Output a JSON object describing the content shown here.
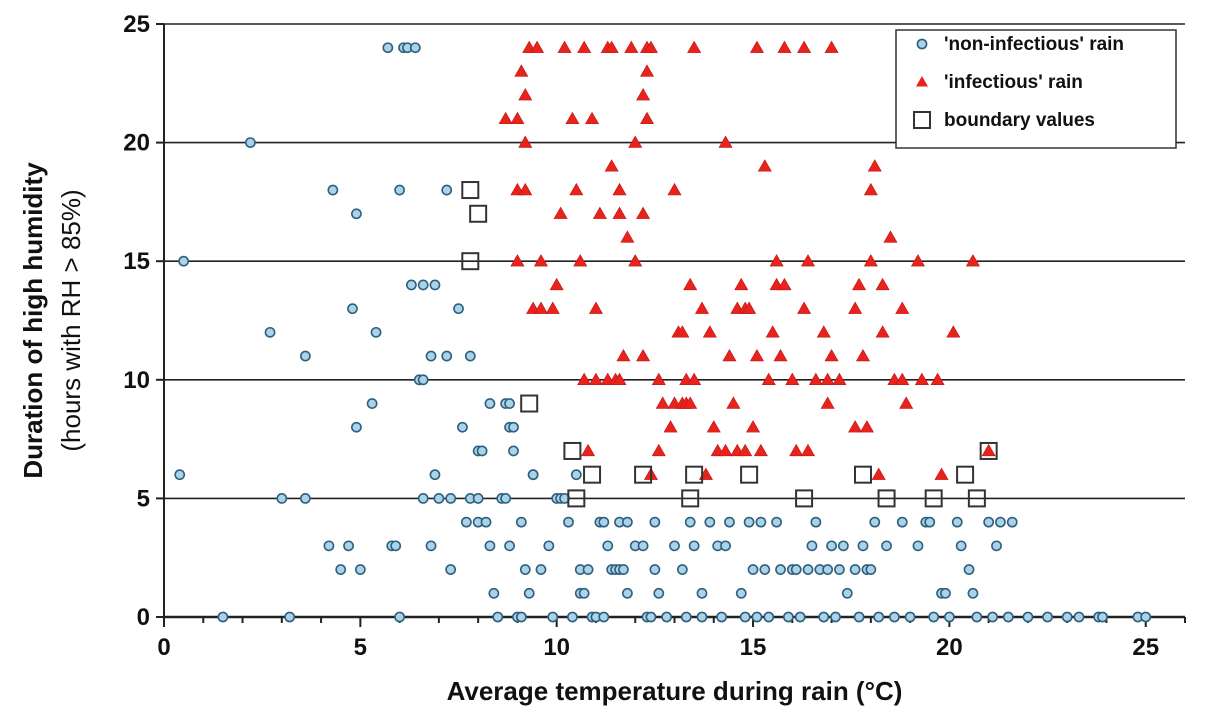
{
  "chart_data": {
    "type": "scatter",
    "title": "",
    "xlabel": "Average temperature during rain (°C)",
    "ylabel_line1": "Duration of high humidity",
    "ylabel_line2": "(hours with RH > 85%)",
    "xlim": [
      0,
      26
    ],
    "ylim": [
      0,
      25
    ],
    "x_ticks": [
      0,
      5,
      10,
      15,
      20,
      25
    ],
    "y_ticks": [
      0,
      5,
      10,
      15,
      20,
      25
    ],
    "grid": "horizontal",
    "legend_position": "top-right",
    "series": [
      {
        "name": "'non-infectious' rain",
        "marker": "circle",
        "color": "#4a7fa0",
        "points": [
          [
            0.4,
            6
          ],
          [
            0.5,
            15
          ],
          [
            1.5,
            0
          ],
          [
            2.2,
            20
          ],
          [
            2.7,
            12
          ],
          [
            3.0,
            5
          ],
          [
            3.2,
            0
          ],
          [
            3.6,
            11
          ],
          [
            3.6,
            5
          ],
          [
            4.2,
            3
          ],
          [
            4.3,
            18
          ],
          [
            4.5,
            2
          ],
          [
            4.7,
            3
          ],
          [
            4.8,
            13
          ],
          [
            4.9,
            17
          ],
          [
            4.9,
            8
          ],
          [
            5.0,
            2
          ],
          [
            5.3,
            9
          ],
          [
            5.4,
            12
          ],
          [
            5.7,
            24
          ],
          [
            5.8,
            3
          ],
          [
            5.9,
            3
          ],
          [
            6.0,
            18
          ],
          [
            6.0,
            0
          ],
          [
            6.1,
            24
          ],
          [
            6.2,
            24
          ],
          [
            6.3,
            14
          ],
          [
            6.4,
            24
          ],
          [
            6.5,
            10
          ],
          [
            6.6,
            10
          ],
          [
            6.6,
            5
          ],
          [
            6.6,
            14
          ],
          [
            6.8,
            3
          ],
          [
            6.8,
            11
          ],
          [
            6.9,
            14
          ],
          [
            6.9,
            6
          ],
          [
            7.0,
            5
          ],
          [
            7.2,
            11
          ],
          [
            7.2,
            18
          ],
          [
            7.3,
            2
          ],
          [
            7.3,
            5
          ],
          [
            7.5,
            13
          ],
          [
            7.6,
            8
          ],
          [
            7.7,
            4
          ],
          [
            7.8,
            5
          ],
          [
            7.8,
            11
          ],
          [
            8.0,
            7
          ],
          [
            8.0,
            5
          ],
          [
            8.0,
            4
          ],
          [
            8.1,
            7
          ],
          [
            8.2,
            4
          ],
          [
            8.3,
            9
          ],
          [
            8.3,
            3
          ],
          [
            8.4,
            1
          ],
          [
            8.5,
            0
          ],
          [
            8.6,
            5
          ],
          [
            8.7,
            5
          ],
          [
            8.7,
            9
          ],
          [
            8.8,
            9
          ],
          [
            8.8,
            3
          ],
          [
            8.8,
            8
          ],
          [
            8.9,
            7
          ],
          [
            8.9,
            8
          ],
          [
            9.0,
            0
          ],
          [
            9.1,
            0
          ],
          [
            9.1,
            4
          ],
          [
            9.2,
            2
          ],
          [
            9.3,
            1
          ],
          [
            9.4,
            6
          ],
          [
            9.4,
            6
          ],
          [
            9.6,
            2
          ],
          [
            9.8,
            3
          ],
          [
            9.9,
            0
          ],
          [
            10.0,
            5
          ],
          [
            10.1,
            5
          ],
          [
            10.2,
            5
          ],
          [
            10.3,
            4
          ],
          [
            10.4,
            0
          ],
          [
            10.5,
            6
          ],
          [
            10.6,
            2
          ],
          [
            10.6,
            1
          ],
          [
            10.7,
            1
          ],
          [
            10.8,
            2
          ],
          [
            10.9,
            0
          ],
          [
            11.0,
            0
          ],
          [
            11.1,
            4
          ],
          [
            11.2,
            4
          ],
          [
            11.2,
            0
          ],
          [
            11.3,
            3
          ],
          [
            11.4,
            2
          ],
          [
            11.5,
            2
          ],
          [
            11.6,
            4
          ],
          [
            11.6,
            2
          ],
          [
            11.7,
            2
          ],
          [
            11.8,
            4
          ],
          [
            11.8,
            1
          ],
          [
            12.0,
            3
          ],
          [
            12.2,
            3
          ],
          [
            12.3,
            0
          ],
          [
            12.4,
            0
          ],
          [
            12.5,
            2
          ],
          [
            12.5,
            4
          ],
          [
            12.6,
            1
          ],
          [
            12.8,
            0
          ],
          [
            13.0,
            3
          ],
          [
            13.2,
            2
          ],
          [
            13.3,
            0
          ],
          [
            13.4,
            4
          ],
          [
            13.5,
            3
          ],
          [
            13.7,
            1
          ],
          [
            13.7,
            0
          ],
          [
            13.9,
            4
          ],
          [
            14.1,
            3
          ],
          [
            14.2,
            0
          ],
          [
            14.3,
            3
          ],
          [
            14.4,
            4
          ],
          [
            14.7,
            1
          ],
          [
            14.8,
            0
          ],
          [
            14.9,
            4
          ],
          [
            15.0,
            2
          ],
          [
            15.1,
            0
          ],
          [
            15.2,
            4
          ],
          [
            15.3,
            2
          ],
          [
            15.4,
            0
          ],
          [
            15.6,
            4
          ],
          [
            15.7,
            2
          ],
          [
            15.9,
            0
          ],
          [
            16.0,
            2
          ],
          [
            16.1,
            2
          ],
          [
            16.2,
            0
          ],
          [
            16.4,
            2
          ],
          [
            16.5,
            3
          ],
          [
            16.6,
            4
          ],
          [
            16.7,
            2
          ],
          [
            16.8,
            0
          ],
          [
            16.9,
            2
          ],
          [
            17.0,
            3
          ],
          [
            17.1,
            0
          ],
          [
            17.2,
            2
          ],
          [
            17.3,
            3
          ],
          [
            17.4,
            1
          ],
          [
            17.6,
            2
          ],
          [
            17.7,
            0
          ],
          [
            17.8,
            3
          ],
          [
            17.9,
            2
          ],
          [
            18.0,
            2
          ],
          [
            18.1,
            4
          ],
          [
            18.2,
            0
          ],
          [
            18.4,
            3
          ],
          [
            18.6,
            0
          ],
          [
            18.8,
            4
          ],
          [
            19.0,
            0
          ],
          [
            19.2,
            3
          ],
          [
            19.4,
            4
          ],
          [
            19.5,
            4
          ],
          [
            19.6,
            0
          ],
          [
            19.8,
            1
          ],
          [
            19.9,
            1
          ],
          [
            20.0,
            0
          ],
          [
            20.2,
            4
          ],
          [
            20.3,
            3
          ],
          [
            20.5,
            2
          ],
          [
            20.6,
            1
          ],
          [
            20.7,
            0
          ],
          [
            21.0,
            4
          ],
          [
            21.1,
            0
          ],
          [
            21.2,
            3
          ],
          [
            21.3,
            4
          ],
          [
            21.5,
            0
          ],
          [
            21.6,
            4
          ],
          [
            22.0,
            0
          ],
          [
            22.5,
            0
          ],
          [
            23.0,
            0
          ],
          [
            23.3,
            0
          ],
          [
            23.8,
            0
          ],
          [
            23.9,
            0
          ],
          [
            24.8,
            0
          ],
          [
            25.0,
            0
          ]
        ]
      },
      {
        "name": "'infectious' rain",
        "marker": "triangle",
        "color": "#e8231e",
        "points": [
          [
            8.7,
            21
          ],
          [
            9.0,
            18
          ],
          [
            9.0,
            15
          ],
          [
            9.0,
            21
          ],
          [
            9.1,
            23
          ],
          [
            9.2,
            18
          ],
          [
            9.2,
            20
          ],
          [
            9.2,
            22
          ],
          [
            9.3,
            24
          ],
          [
            9.4,
            13
          ],
          [
            9.5,
            24
          ],
          [
            9.6,
            15
          ],
          [
            9.6,
            13
          ],
          [
            9.9,
            13
          ],
          [
            10.0,
            14
          ],
          [
            10.1,
            17
          ],
          [
            10.2,
            24
          ],
          [
            10.4,
            21
          ],
          [
            10.5,
            18
          ],
          [
            10.6,
            15
          ],
          [
            10.7,
            24
          ],
          [
            10.7,
            10
          ],
          [
            10.8,
            7
          ],
          [
            10.9,
            21
          ],
          [
            11.0,
            13
          ],
          [
            11.0,
            10
          ],
          [
            11.1,
            17
          ],
          [
            11.3,
            24
          ],
          [
            11.3,
            10
          ],
          [
            11.4,
            24
          ],
          [
            11.4,
            19
          ],
          [
            11.5,
            10
          ],
          [
            11.6,
            17
          ],
          [
            11.6,
            18
          ],
          [
            11.6,
            10
          ],
          [
            11.7,
            11
          ],
          [
            11.8,
            16
          ],
          [
            11.9,
            24
          ],
          [
            12.0,
            15
          ],
          [
            12.0,
            20
          ],
          [
            12.2,
            11
          ],
          [
            12.2,
            17
          ],
          [
            12.2,
            22
          ],
          [
            12.3,
            23
          ],
          [
            12.3,
            24
          ],
          [
            12.3,
            21
          ],
          [
            12.4,
            24
          ],
          [
            12.4,
            6
          ],
          [
            12.6,
            7
          ],
          [
            12.6,
            10
          ],
          [
            12.7,
            9
          ],
          [
            12.9,
            8
          ],
          [
            13.0,
            18
          ],
          [
            13.0,
            9
          ],
          [
            13.1,
            12
          ],
          [
            13.2,
            12
          ],
          [
            13.2,
            9
          ],
          [
            13.3,
            10
          ],
          [
            13.3,
            9
          ],
          [
            13.4,
            14
          ],
          [
            13.4,
            9
          ],
          [
            13.5,
            10
          ],
          [
            13.5,
            24
          ],
          [
            13.7,
            13
          ],
          [
            13.8,
            6
          ],
          [
            13.9,
            12
          ],
          [
            14.0,
            8
          ],
          [
            14.1,
            7
          ],
          [
            14.3,
            20
          ],
          [
            14.3,
            7
          ],
          [
            14.4,
            11
          ],
          [
            14.5,
            9
          ],
          [
            14.6,
            7
          ],
          [
            14.6,
            13
          ],
          [
            14.7,
            14
          ],
          [
            14.8,
            13
          ],
          [
            14.8,
            7
          ],
          [
            14.9,
            13
          ],
          [
            15.0,
            8
          ],
          [
            15.1,
            11
          ],
          [
            15.1,
            24
          ],
          [
            15.2,
            7
          ],
          [
            15.3,
            19
          ],
          [
            15.4,
            10
          ],
          [
            15.5,
            12
          ],
          [
            15.6,
            15
          ],
          [
            15.6,
            14
          ],
          [
            15.7,
            11
          ],
          [
            15.8,
            24
          ],
          [
            15.8,
            14
          ],
          [
            16.0,
            10
          ],
          [
            16.1,
            7
          ],
          [
            16.3,
            24
          ],
          [
            16.3,
            13
          ],
          [
            16.4,
            15
          ],
          [
            16.4,
            7
          ],
          [
            16.6,
            10
          ],
          [
            16.8,
            12
          ],
          [
            16.9,
            9
          ],
          [
            16.9,
            10
          ],
          [
            17.0,
            24
          ],
          [
            17.0,
            11
          ],
          [
            17.2,
            10
          ],
          [
            17.6,
            13
          ],
          [
            17.6,
            8
          ],
          [
            17.7,
            14
          ],
          [
            17.8,
            11
          ],
          [
            17.9,
            8
          ],
          [
            18.0,
            15
          ],
          [
            18.0,
            18
          ],
          [
            18.1,
            19
          ],
          [
            18.2,
            6
          ],
          [
            18.3,
            12
          ],
          [
            18.3,
            14
          ],
          [
            18.5,
            16
          ],
          [
            18.6,
            10
          ],
          [
            18.8,
            10
          ],
          [
            18.8,
            13
          ],
          [
            18.9,
            9
          ],
          [
            19.2,
            15
          ],
          [
            19.3,
            10
          ],
          [
            19.7,
            10
          ],
          [
            19.8,
            6
          ],
          [
            20.1,
            12
          ],
          [
            20.6,
            15
          ],
          [
            21.0,
            7
          ]
        ]
      },
      {
        "name": "boundary values",
        "marker": "square",
        "color": "#333333",
        "points": [
          [
            7.8,
            18
          ],
          [
            8.0,
            17
          ],
          [
            7.8,
            15
          ],
          [
            9.3,
            9
          ],
          [
            10.4,
            7
          ],
          [
            10.5,
            5
          ],
          [
            10.9,
            6
          ],
          [
            12.2,
            6
          ],
          [
            13.5,
            6
          ],
          [
            13.4,
            5
          ],
          [
            14.9,
            6
          ],
          [
            16.3,
            5
          ],
          [
            17.8,
            6
          ],
          [
            18.4,
            5
          ],
          [
            19.6,
            5
          ],
          [
            20.4,
            6
          ],
          [
            20.7,
            5
          ],
          [
            21.0,
            7
          ]
        ]
      }
    ]
  }
}
